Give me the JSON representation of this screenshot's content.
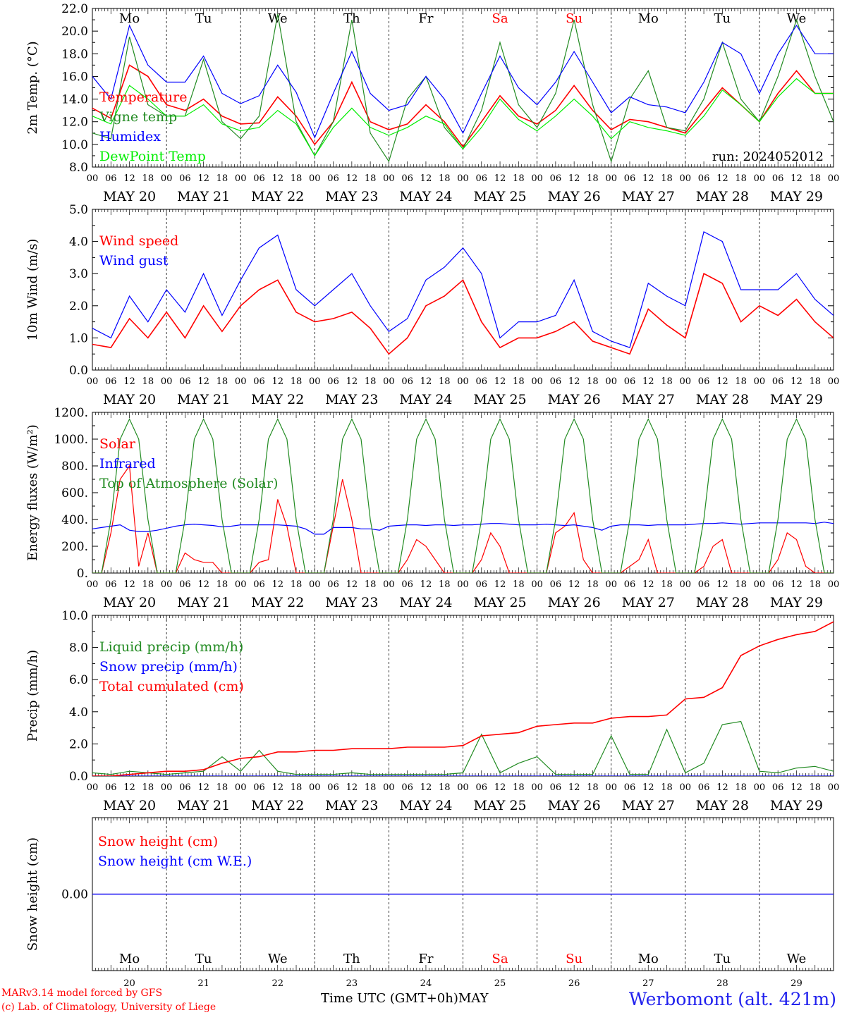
{
  "meta": {
    "model_line": "MARv3.14 model forced by GFS",
    "copyright_line": "(c) Lab. of Climatology, University of Liege",
    "time_axis_label": "Time UTC (GMT+0h)",
    "month_label": "MAY",
    "station": "Werbomont (alt. 421m)",
    "run_label": "run: 2024052012"
  },
  "days": {
    "weekday_labels": [
      "Mo",
      "Tu",
      "We",
      "Th",
      "Fr",
      "Sa",
      "Su",
      "Mo",
      "Tu",
      "We"
    ],
    "weekday_colors": [
      "#000000",
      "#000000",
      "#000000",
      "#000000",
      "#000000",
      "#ff0000",
      "#ff0000",
      "#000000",
      "#000000",
      "#000000"
    ],
    "date_labels": [
      "MAY 20",
      "MAY 21",
      "MAY 22",
      "MAY 23",
      "MAY 24",
      "MAY 25",
      "MAY 26",
      "MAY 27",
      "MAY 28",
      "MAY 29"
    ],
    "day_numbers": [
      "20",
      "21",
      "22",
      "23",
      "24",
      "25",
      "26",
      "27",
      "28",
      "29"
    ],
    "hour_ticks": [
      "00",
      "06",
      "12",
      "18"
    ],
    "final_hour": "00"
  },
  "chart_data": [
    {
      "id": "temperature",
      "type": "line",
      "ylabel": "2m Temp. (°C)",
      "ylim": [
        8,
        22
      ],
      "yticks": [
        "8.0",
        "10.0",
        "12.0",
        "14.0",
        "16.0",
        "18.0",
        "20.0",
        "22.0"
      ],
      "x_hours": [
        0,
        6,
        12,
        18,
        24,
        30,
        36,
        42,
        48,
        54,
        60,
        66,
        72,
        78,
        84,
        90,
        96,
        102,
        108,
        114,
        120,
        126,
        132,
        138,
        144,
        150,
        156,
        162,
        168,
        174,
        180,
        186,
        192,
        198,
        204,
        210,
        216,
        222,
        228,
        234,
        240
      ],
      "series": [
        {
          "name": "Temperature",
          "color": "#ff0000",
          "values": [
            13.2,
            12.3,
            17.0,
            16.0,
            13.5,
            13.0,
            14.0,
            12.5,
            11.8,
            11.9,
            14.2,
            12.5,
            10.0,
            12.0,
            15.5,
            12.0,
            11.3,
            11.8,
            13.5,
            12.0,
            9.8,
            12.0,
            14.3,
            12.5,
            11.8,
            13.0,
            15.2,
            13.0,
            11.3,
            12.2,
            12.0,
            11.5,
            11.0,
            13.0,
            15.0,
            13.5,
            12.0,
            14.5,
            16.5,
            14.5,
            14.5
          ]
        },
        {
          "name": "Vigne temp",
          "color": "#228b22",
          "values": [
            11.0,
            10.5,
            19.5,
            13.5,
            12.5,
            12.5,
            17.5,
            12.0,
            10.5,
            12.5,
            21.5,
            12.0,
            9.0,
            12.0,
            21.0,
            11.0,
            8.5,
            14.0,
            16.0,
            11.5,
            9.6,
            13.0,
            19.0,
            13.5,
            11.5,
            14.5,
            21.0,
            13.5,
            8.5,
            14.0,
            16.5,
            11.5,
            11.2,
            14.0,
            19.0,
            14.0,
            12.0,
            16.0,
            21.0,
            16.0,
            12.0
          ]
        },
        {
          "name": "Humidex",
          "color": "#0000ff",
          "values": [
            16.0,
            14.0,
            20.5,
            17.0,
            15.5,
            15.5,
            17.8,
            14.5,
            13.6,
            14.3,
            17.0,
            14.6,
            10.6,
            14.5,
            18.2,
            14.5,
            13.0,
            13.5,
            16.0,
            14.0,
            11.0,
            14.5,
            17.8,
            15.0,
            13.5,
            15.5,
            18.2,
            15.5,
            12.8,
            14.2,
            13.5,
            13.3,
            12.8,
            15.5,
            19.0,
            18.0,
            14.5,
            18.0,
            20.5,
            18.0,
            18.0
          ]
        },
        {
          "name": "DewPoint Temp",
          "color": "#00ee00",
          "values": [
            12.5,
            11.8,
            15.2,
            14.0,
            12.5,
            12.5,
            13.5,
            11.8,
            11.2,
            11.5,
            13.0,
            11.8,
            9.0,
            11.5,
            13.2,
            11.5,
            10.8,
            11.5,
            12.5,
            11.8,
            9.6,
            11.5,
            14.0,
            12.2,
            11.2,
            12.5,
            14.0,
            12.5,
            10.5,
            12.0,
            11.5,
            11.2,
            10.8,
            12.5,
            14.8,
            13.5,
            12.0,
            14.2,
            15.8,
            14.5,
            14.5
          ]
        }
      ]
    },
    {
      "id": "wind",
      "type": "line",
      "ylabel": "10m Wind (m/s)",
      "ylim": [
        0,
        5
      ],
      "yticks": [
        "0.0",
        "1.0",
        "2.0",
        "3.0",
        "4.0",
        "5.0"
      ],
      "x_hours": [
        0,
        6,
        12,
        18,
        24,
        30,
        36,
        42,
        48,
        54,
        60,
        66,
        72,
        78,
        84,
        90,
        96,
        102,
        108,
        114,
        120,
        126,
        132,
        138,
        144,
        150,
        156,
        162,
        168,
        174,
        180,
        186,
        192,
        198,
        204,
        210,
        216,
        222,
        228,
        234,
        240
      ],
      "series": [
        {
          "name": "Wind speed",
          "color": "#ff0000",
          "values": [
            0.8,
            0.7,
            1.6,
            1.0,
            1.8,
            1.0,
            2.0,
            1.2,
            2.0,
            2.5,
            2.8,
            1.8,
            1.5,
            1.6,
            1.8,
            1.3,
            0.5,
            1.0,
            2.0,
            2.3,
            2.8,
            1.5,
            0.7,
            1.0,
            1.0,
            1.2,
            1.5,
            0.9,
            0.7,
            0.5,
            1.9,
            1.4,
            1.0,
            3.0,
            2.7,
            1.5,
            2.0,
            1.7,
            2.2,
            1.5,
            1.0
          ]
        },
        {
          "name": "Wind gust",
          "color": "#0000ff",
          "values": [
            1.3,
            1.0,
            2.3,
            1.5,
            2.5,
            1.8,
            3.0,
            1.7,
            2.8,
            3.8,
            4.2,
            2.5,
            2.0,
            2.5,
            3.0,
            2.0,
            1.2,
            1.6,
            2.8,
            3.2,
            3.8,
            3.0,
            1.0,
            1.5,
            1.5,
            1.7,
            2.8,
            1.2,
            0.9,
            0.7,
            2.7,
            2.3,
            2.0,
            4.3,
            4.0,
            2.5,
            2.5,
            2.5,
            3.0,
            2.2,
            1.7
          ]
        }
      ]
    },
    {
      "id": "energy",
      "type": "line",
      "ylabel": "Energy fluxes (W/m²)",
      "ylim": [
        0,
        1200
      ],
      "yticks": [
        "0.",
        "200.",
        "400.",
        "600.",
        "800.",
        "1000.",
        "1200."
      ],
      "x_hours": [
        0,
        3,
        6,
        9,
        12,
        15,
        18,
        21,
        24,
        27,
        30,
        33,
        36,
        39,
        42,
        45,
        48,
        51,
        54,
        57,
        60,
        63,
        66,
        69,
        72,
        75,
        78,
        81,
        84,
        87,
        90,
        93,
        96,
        99,
        102,
        105,
        108,
        111,
        114,
        117,
        120,
        123,
        126,
        129,
        132,
        135,
        138,
        141,
        144,
        147,
        150,
        153,
        156,
        159,
        162,
        165,
        168,
        171,
        174,
        177,
        180,
        183,
        186,
        189,
        192,
        195,
        198,
        201,
        204,
        207,
        210,
        213,
        216,
        219,
        222,
        225,
        228,
        231,
        234,
        237,
        240
      ],
      "series": [
        {
          "name": "Solar",
          "color": "#ff0000",
          "values": [
            0,
            0,
            300,
            700,
            800,
            50,
            300,
            0,
            0,
            0,
            150,
            100,
            80,
            80,
            0,
            0,
            0,
            0,
            80,
            100,
            550,
            350,
            0,
            0,
            0,
            0,
            350,
            700,
            400,
            0,
            0,
            0,
            0,
            0,
            100,
            250,
            200,
            100,
            0,
            0,
            0,
            0,
            100,
            300,
            200,
            0,
            0,
            0,
            0,
            0,
            300,
            350,
            450,
            100,
            0,
            0,
            0,
            0,
            50,
            100,
            250,
            0,
            0,
            0,
            0,
            0,
            50,
            200,
            250,
            0,
            0,
            0,
            0,
            0,
            100,
            300,
            250,
            50,
            0,
            0,
            0
          ]
        },
        {
          "name": "Infrared",
          "color": "#0000ff",
          "values": [
            330,
            340,
            350,
            360,
            320,
            310,
            310,
            320,
            335,
            350,
            360,
            365,
            360,
            355,
            345,
            350,
            360,
            360,
            360,
            360,
            360,
            355,
            350,
            330,
            290,
            290,
            340,
            340,
            340,
            330,
            330,
            320,
            350,
            355,
            360,
            360,
            355,
            360,
            360,
            355,
            360,
            360,
            365,
            370,
            370,
            365,
            360,
            360,
            360,
            365,
            360,
            355,
            360,
            350,
            340,
            320,
            350,
            360,
            360,
            360,
            355,
            360,
            360,
            360,
            360,
            365,
            370,
            370,
            375,
            370,
            365,
            370,
            375,
            375,
            375,
            375,
            375,
            375,
            370,
            380,
            370
          ]
        },
        {
          "name": "Top of Atmosphere (Solar)",
          "color": "#228b22",
          "values": [
            0,
            0,
            400,
            1000,
            1150,
            1000,
            400,
            0,
            0,
            0,
            400,
            1000,
            1150,
            1000,
            400,
            0,
            0,
            0,
            400,
            1000,
            1150,
            1000,
            400,
            0,
            0,
            0,
            400,
            1000,
            1150,
            1000,
            400,
            0,
            0,
            0,
            400,
            1000,
            1150,
            1000,
            400,
            0,
            0,
            0,
            400,
            1000,
            1150,
            1000,
            400,
            0,
            0,
            0,
            400,
            1000,
            1150,
            1000,
            400,
            0,
            0,
            0,
            400,
            1000,
            1150,
            1000,
            400,
            0,
            0,
            0,
            400,
            1000,
            1150,
            1000,
            400,
            0,
            0,
            0,
            400,
            1000,
            1150,
            1000,
            400,
            0,
            0
          ]
        }
      ]
    },
    {
      "id": "precip",
      "type": "line",
      "ylabel": "Precip (mm/h)",
      "ylim": [
        0,
        10
      ],
      "yticks": [
        "0.0",
        "2.0",
        "4.0",
        "6.0",
        "8.0",
        "10.0"
      ],
      "x_hours": [
        0,
        6,
        12,
        18,
        24,
        30,
        36,
        42,
        48,
        54,
        60,
        66,
        72,
        78,
        84,
        90,
        96,
        102,
        108,
        114,
        120,
        126,
        132,
        138,
        144,
        150,
        156,
        162,
        168,
        174,
        180,
        186,
        192,
        198,
        204,
        210,
        216,
        222,
        228,
        234,
        240
      ],
      "series": [
        {
          "name": "Liquid precip (mm/h)",
          "color": "#228b22",
          "values": [
            0.2,
            0.1,
            0.3,
            0.2,
            0.1,
            0.2,
            0.3,
            1.2,
            0.3,
            1.6,
            0.3,
            0.1,
            0.1,
            0.1,
            0.2,
            0.1,
            0.1,
            0.1,
            0.1,
            0.1,
            0.2,
            2.6,
            0.2,
            0.8,
            1.2,
            0.1,
            0.1,
            0.1,
            2.5,
            0.1,
            0.1,
            2.9,
            0.2,
            0.8,
            3.2,
            3.4,
            0.3,
            0.2,
            0.5,
            0.6,
            0.3
          ]
        },
        {
          "name": "Snow precip (mm/h)",
          "color": "#0000ff",
          "values": [
            0,
            0,
            0,
            0,
            0,
            0,
            0,
            0,
            0,
            0,
            0,
            0,
            0,
            0,
            0,
            0,
            0,
            0,
            0,
            0,
            0,
            0,
            0,
            0,
            0,
            0,
            0,
            0,
            0,
            0,
            0,
            0,
            0,
            0,
            0,
            0,
            0,
            0,
            0,
            0,
            0
          ]
        },
        {
          "name": "Total cumulated (cm)",
          "color": "#ff0000",
          "values": [
            0.0,
            0.0,
            0.1,
            0.2,
            0.3,
            0.3,
            0.4,
            0.8,
            1.1,
            1.2,
            1.5,
            1.5,
            1.6,
            1.6,
            1.7,
            1.7,
            1.7,
            1.8,
            1.8,
            1.8,
            1.9,
            2.5,
            2.6,
            2.7,
            3.1,
            3.2,
            3.3,
            3.3,
            3.6,
            3.7,
            3.7,
            3.8,
            4.8,
            4.9,
            5.5,
            7.5,
            8.1,
            8.5,
            8.8,
            9.0,
            9.6
          ]
        }
      ]
    },
    {
      "id": "snow",
      "type": "line",
      "ylabel": "Snow height (cm)",
      "ylim": [
        -1,
        1
      ],
      "yticks": [
        "0.00"
      ],
      "x_hours": [
        0,
        240
      ],
      "series": [
        {
          "name": "Snow height (cm)",
          "color": "#ff0000",
          "values": [
            0,
            0
          ]
        },
        {
          "name": "Snow height (cm W.E.)",
          "color": "#0000ff",
          "values": [
            0,
            0
          ]
        }
      ]
    }
  ]
}
